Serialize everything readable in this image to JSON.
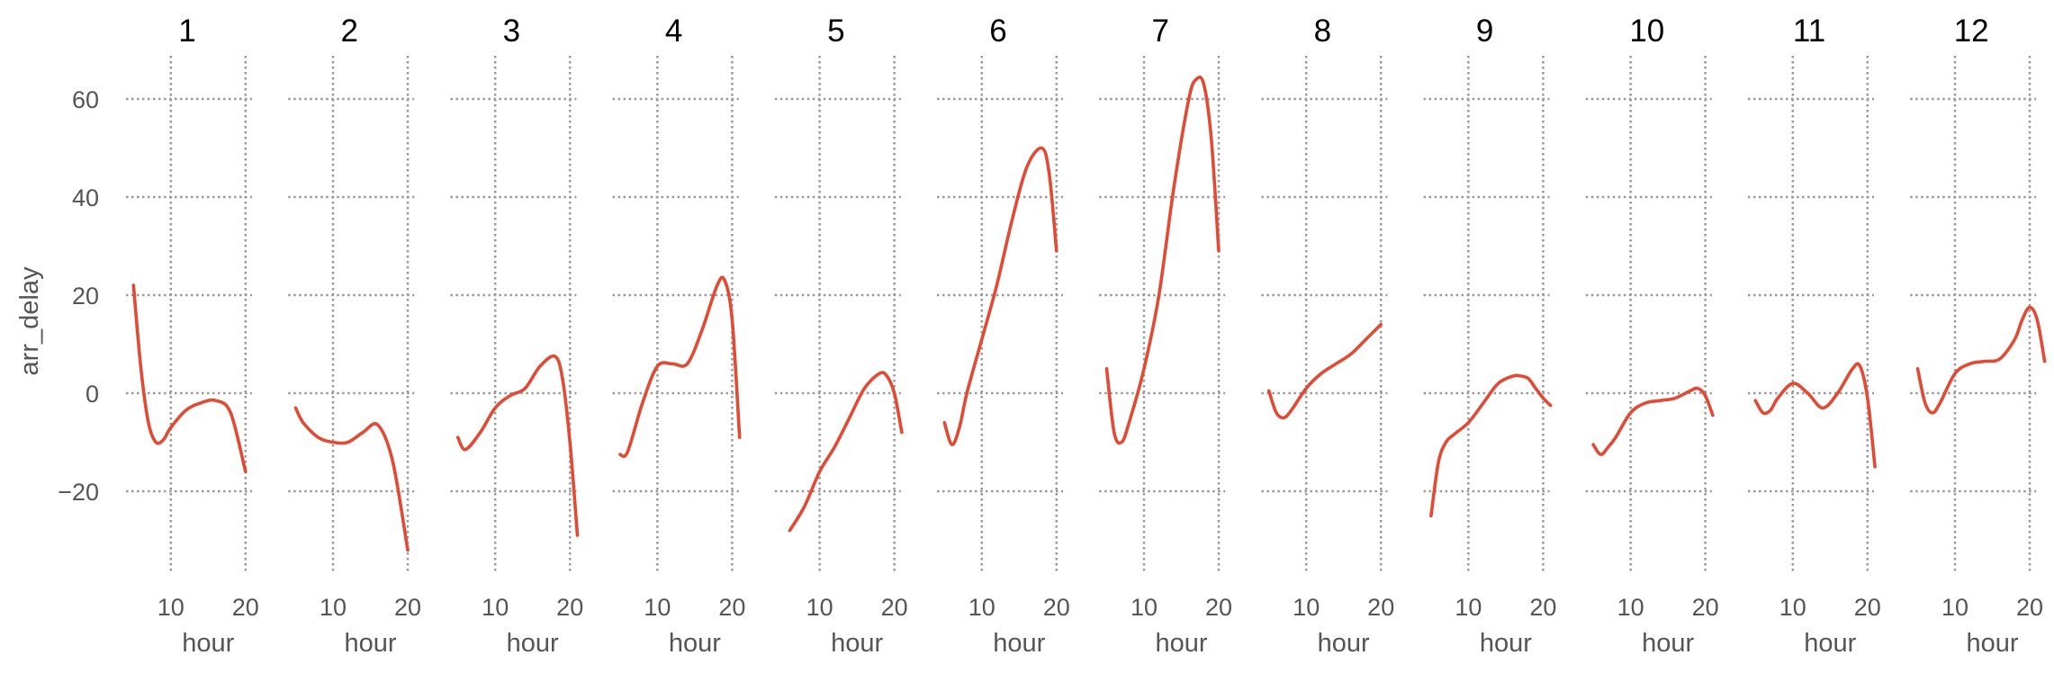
{
  "chart_data": {
    "type": "line",
    "layout": "faceted small multiples, 12 panels in one row, shared y axis",
    "xlabel": "hour",
    "ylabel": "arr_delay",
    "xticks": [
      10,
      20
    ],
    "yticks": [
      -20,
      0,
      20,
      40,
      60
    ],
    "ylim": [
      -38,
      68
    ],
    "grid": "dotted",
    "colors": {
      "line": "#e24a33",
      "grid": "#999999",
      "axis_text": "#555555",
      "title_text": "#000000"
    },
    "panels": [
      {
        "title": "1",
        "x": [
          5,
          6,
          7,
          8,
          9,
          10,
          12,
          14,
          16,
          18,
          20
        ],
        "y": [
          22,
          5,
          -6,
          -10,
          -9.5,
          -7,
          -3.5,
          -2,
          -1.5,
          -4,
          -16
        ]
      },
      {
        "title": "2",
        "x": [
          5,
          6,
          8,
          10,
          12,
          14,
          16,
          18,
          20
        ],
        "y": [
          -3,
          -6,
          -9,
          -10,
          -10,
          -8,
          -6.5,
          -14,
          -32
        ]
      },
      {
        "title": "3",
        "x": [
          5,
          6,
          8,
          10,
          12,
          14,
          16,
          18,
          19,
          20,
          21
        ],
        "y": [
          -9,
          -11.5,
          -8,
          -3,
          -0.5,
          1,
          5.5,
          7.5,
          3,
          -10,
          -29
        ]
      },
      {
        "title": "4",
        "x": [
          5,
          6,
          8,
          10,
          12,
          14,
          16,
          18,
          19,
          20,
          21
        ],
        "y": [
          -12.5,
          -12,
          -2,
          5.5,
          6,
          6,
          13,
          22,
          23,
          15,
          -9
        ]
      },
      {
        "title": "5",
        "x": [
          6,
          8,
          10,
          12,
          14,
          16,
          18,
          19,
          20,
          21
        ],
        "y": [
          -28,
          -23,
          -16,
          -11,
          -5,
          1,
          4,
          3.5,
          0,
          -8
        ]
      },
      {
        "title": "6",
        "x": [
          5,
          6,
          7,
          8,
          10,
          12,
          14,
          16,
          18,
          19,
          20
        ],
        "y": [
          -6,
          -10.5,
          -7,
          0,
          11,
          22,
          35,
          46,
          50,
          45,
          29
        ]
      },
      {
        "title": "7",
        "x": [
          5,
          6,
          7,
          8,
          10,
          12,
          14,
          16,
          17,
          18,
          19,
          20
        ],
        "y": [
          5,
          -8,
          -10,
          -6,
          5,
          20,
          42,
          60,
          64,
          63,
          52,
          29
        ]
      },
      {
        "title": "8",
        "x": [
          5,
          6,
          7,
          8,
          10,
          12,
          14,
          16,
          18,
          20
        ],
        "y": [
          0.5,
          -4,
          -5,
          -3.5,
          1,
          4,
          6,
          8,
          11,
          14
        ]
      },
      {
        "title": "9",
        "x": [
          5,
          6,
          7,
          8,
          10,
          12,
          14,
          16,
          17,
          18,
          19,
          20,
          21
        ],
        "y": [
          -25,
          -14,
          -10,
          -8.5,
          -6,
          -2,
          2,
          3.5,
          3.5,
          3,
          1,
          -1,
          -2.5
        ]
      },
      {
        "title": "10",
        "x": [
          5,
          6,
          7,
          8,
          10,
          12,
          14,
          16,
          18,
          19,
          20,
          21
        ],
        "y": [
          -10.5,
          -12.5,
          -11,
          -9,
          -4,
          -2,
          -1.5,
          -1,
          0.5,
          1,
          -0.5,
          -4.5
        ]
      },
      {
        "title": "11",
        "x": [
          5,
          6,
          7,
          8,
          10,
          12,
          14,
          16,
          18,
          19,
          20,
          21
        ],
        "y": [
          -1.5,
          -4,
          -3.5,
          -1,
          2,
          0,
          -3,
          0,
          5,
          5.5,
          -1,
          -15
        ]
      },
      {
        "title": "12",
        "x": [
          5,
          6,
          7,
          8,
          10,
          12,
          14,
          16,
          18,
          19,
          20,
          21,
          22
        ],
        "y": [
          5,
          -2,
          -4,
          -2,
          4,
          6,
          6.5,
          7,
          11,
          15,
          17.5,
          15,
          6.5
        ]
      }
    ]
  }
}
